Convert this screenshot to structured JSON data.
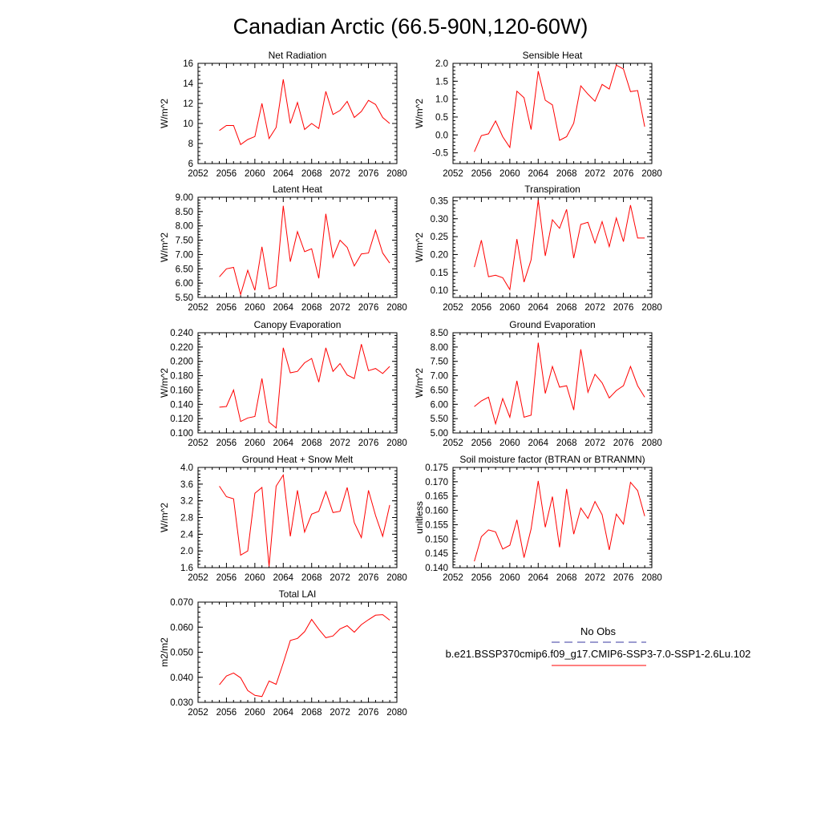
{
  "title": "Canadian Arctic (66.5-90N,120-60W)",
  "legend": {
    "obs_label": "No Obs",
    "obs_color": "#3a3aa0",
    "run_label": "b.e21.BSSP370cmip6.f09_g17.CMIP6-SSP3-7.0-SSP1-2.6Lu.102",
    "run_color": "#ff0000"
  },
  "chart_data": [
    {
      "type": "line",
      "title": "Net Radiation",
      "ylabel": "W/m^2",
      "xlim": [
        2052,
        2080
      ],
      "xticks": [
        "2052",
        "2056",
        "2060",
        "2064",
        "2068",
        "2072",
        "2076",
        "2080"
      ],
      "ylim": [
        6,
        16
      ],
      "yticks": [
        "6",
        "8",
        "10",
        "12",
        "14",
        "16"
      ],
      "x": [
        2055,
        2056,
        2057,
        2058,
        2059,
        2060,
        2061,
        2062,
        2063,
        2064,
        2065,
        2066,
        2067,
        2068,
        2069,
        2070,
        2071,
        2072,
        2073,
        2074,
        2075,
        2076,
        2077,
        2078,
        2079
      ],
      "series": [
        {
          "color": "#ff0000",
          "values": [
            9.3,
            9.8,
            9.8,
            7.9,
            8.4,
            8.7,
            12.0,
            8.5,
            9.6,
            14.4,
            10.0,
            12.1,
            9.4,
            10.0,
            9.5,
            13.2,
            10.9,
            11.3,
            12.2,
            10.6,
            11.2,
            12.3,
            11.9,
            10.6,
            10.0
          ]
        }
      ]
    },
    {
      "type": "line",
      "title": "Sensible Heat",
      "ylabel": "W/m^2",
      "xlim": [
        2052,
        2080
      ],
      "xticks": [
        "2052",
        "2056",
        "2060",
        "2064",
        "2068",
        "2072",
        "2076",
        "2080"
      ],
      "ylim": [
        -0.8,
        2.0
      ],
      "yticks": [
        "-0.5",
        "0.0",
        "0.5",
        "1.0",
        "1.5",
        "2.0"
      ],
      "yticks_values": [
        -0.5,
        0.0,
        0.5,
        1.0,
        1.5,
        2.0
      ],
      "x": [
        2055,
        2056,
        2057,
        2058,
        2059,
        2060,
        2061,
        2062,
        2063,
        2064,
        2065,
        2066,
        2067,
        2068,
        2069,
        2070,
        2071,
        2072,
        2073,
        2074,
        2075,
        2076,
        2077,
        2078,
        2079
      ],
      "series": [
        {
          "color": "#ff0000",
          "values": [
            -0.47,
            -0.02,
            0.03,
            0.39,
            -0.05,
            -0.35,
            1.22,
            1.04,
            0.15,
            1.78,
            0.97,
            0.84,
            -0.15,
            -0.05,
            0.33,
            1.37,
            1.14,
            0.94,
            1.41,
            1.28,
            1.95,
            1.84,
            1.21,
            1.24,
            0.23
          ]
        }
      ]
    },
    {
      "type": "line",
      "title": "Latent Heat",
      "ylabel": "W/m^2",
      "xlim": [
        2052,
        2080
      ],
      "xticks": [
        "2052",
        "2056",
        "2060",
        "2064",
        "2068",
        "2072",
        "2076",
        "2080"
      ],
      "ylim": [
        5.5,
        9.0
      ],
      "yticks": [
        "5.50",
        "6.00",
        "6.50",
        "7.00",
        "7.50",
        "8.00",
        "8.50",
        "9.00"
      ],
      "x": [
        2055,
        2056,
        2057,
        2058,
        2059,
        2060,
        2061,
        2062,
        2063,
        2064,
        2065,
        2066,
        2067,
        2068,
        2069,
        2070,
        2071,
        2072,
        2073,
        2074,
        2075,
        2076,
        2077,
        2078,
        2079
      ],
      "series": [
        {
          "color": "#ff0000",
          "values": [
            6.22,
            6.5,
            6.55,
            5.6,
            6.45,
            5.75,
            7.27,
            5.8,
            5.9,
            8.7,
            6.75,
            7.8,
            7.1,
            7.2,
            6.17,
            8.42,
            6.9,
            7.5,
            7.25,
            6.6,
            7.02,
            7.05,
            7.85,
            7.05,
            6.7
          ]
        }
      ]
    },
    {
      "type": "line",
      "title": "Transpiration",
      "ylabel": "W/m^2",
      "xlim": [
        2052,
        2080
      ],
      "xticks": [
        "2052",
        "2056",
        "2060",
        "2064",
        "2068",
        "2072",
        "2076",
        "2080"
      ],
      "ylim": [
        0.08,
        0.36
      ],
      "yticks": [
        "0.10",
        "0.15",
        "0.20",
        "0.25",
        "0.30",
        "0.35"
      ],
      "yticks_values": [
        0.1,
        0.15,
        0.2,
        0.25,
        0.3,
        0.35
      ],
      "x": [
        2055,
        2056,
        2057,
        2058,
        2059,
        2060,
        2061,
        2062,
        2063,
        2064,
        2065,
        2066,
        2067,
        2068,
        2069,
        2070,
        2071,
        2072,
        2073,
        2074,
        2075,
        2076,
        2077,
        2078,
        2079
      ],
      "series": [
        {
          "color": "#ff0000",
          "values": [
            0.165,
            0.24,
            0.138,
            0.142,
            0.135,
            0.102,
            0.243,
            0.123,
            0.185,
            0.352,
            0.196,
            0.297,
            0.273,
            0.326,
            0.19,
            0.284,
            0.29,
            0.232,
            0.292,
            0.222,
            0.302,
            0.236,
            0.338,
            0.246,
            0.246
          ]
        }
      ]
    },
    {
      "type": "line",
      "title": "Canopy Evaporation",
      "ylabel": "W/m^2",
      "xlim": [
        2052,
        2080
      ],
      "xticks": [
        "2052",
        "2056",
        "2060",
        "2064",
        "2068",
        "2072",
        "2076",
        "2080"
      ],
      "ylim": [
        0.1,
        0.24
      ],
      "yticks": [
        "0.100",
        "0.120",
        "0.140",
        "0.160",
        "0.180",
        "0.200",
        "0.220",
        "0.240"
      ],
      "x": [
        2055,
        2056,
        2057,
        2058,
        2059,
        2060,
        2061,
        2062,
        2063,
        2064,
        2065,
        2066,
        2067,
        2068,
        2069,
        2070,
        2071,
        2072,
        2073,
        2074,
        2075,
        2076,
        2077,
        2078,
        2079
      ],
      "series": [
        {
          "color": "#ff0000",
          "values": [
            0.136,
            0.137,
            0.16,
            0.116,
            0.121,
            0.123,
            0.176,
            0.115,
            0.107,
            0.219,
            0.184,
            0.186,
            0.198,
            0.204,
            0.171,
            0.219,
            0.186,
            0.197,
            0.181,
            0.176,
            0.224,
            0.187,
            0.19,
            0.183,
            0.193
          ]
        }
      ]
    },
    {
      "type": "line",
      "title": "Ground Evaporation",
      "ylabel": "W/m^2",
      "xlim": [
        2052,
        2080
      ],
      "xticks": [
        "2052",
        "2056",
        "2060",
        "2064",
        "2068",
        "2072",
        "2076",
        "2080"
      ],
      "ylim": [
        5.0,
        8.5
      ],
      "yticks": [
        "5.00",
        "5.50",
        "6.00",
        "6.50",
        "7.00",
        "7.50",
        "8.00",
        "8.50"
      ],
      "x": [
        2055,
        2056,
        2057,
        2058,
        2059,
        2060,
        2061,
        2062,
        2063,
        2064,
        2065,
        2066,
        2067,
        2068,
        2069,
        2070,
        2071,
        2072,
        2073,
        2074,
        2075,
        2076,
        2077,
        2078,
        2079
      ],
      "series": [
        {
          "color": "#ff0000",
          "values": [
            5.92,
            6.12,
            6.25,
            5.32,
            6.2,
            5.55,
            6.82,
            5.55,
            5.62,
            8.15,
            6.38,
            7.32,
            6.6,
            6.65,
            5.8,
            7.92,
            6.42,
            7.05,
            6.75,
            6.22,
            6.48,
            6.65,
            7.32,
            6.65,
            6.25
          ]
        }
      ]
    },
    {
      "type": "line",
      "title": "Ground Heat + Snow Melt",
      "ylabel": "W/m^2",
      "xlim": [
        2052,
        2080
      ],
      "xticks": [
        "2052",
        "2056",
        "2060",
        "2064",
        "2068",
        "2072",
        "2076",
        "2080"
      ],
      "ylim": [
        1.6,
        4.0
      ],
      "yticks": [
        "1.6",
        "2.0",
        "2.4",
        "2.8",
        "3.2",
        "3.6",
        "4.0"
      ],
      "x": [
        2055,
        2056,
        2057,
        2058,
        2059,
        2060,
        2061,
        2062,
        2063,
        2064,
        2065,
        2066,
        2067,
        2068,
        2069,
        2070,
        2071,
        2072,
        2073,
        2074,
        2075,
        2076,
        2077,
        2078,
        2079
      ],
      "series": [
        {
          "color": "#ff0000",
          "values": [
            3.55,
            3.3,
            3.25,
            1.9,
            2.0,
            3.38,
            3.52,
            1.63,
            3.55,
            3.82,
            2.35,
            3.45,
            2.45,
            2.88,
            2.95,
            3.42,
            2.92,
            2.95,
            3.52,
            2.68,
            2.32,
            3.45,
            2.85,
            2.35,
            3.1
          ]
        }
      ]
    },
    {
      "type": "line",
      "title": "Soil moisture factor (BTRAN or BTRANMN)",
      "ylabel": "unitless",
      "xlim": [
        2052,
        2080
      ],
      "xticks": [
        "2052",
        "2056",
        "2060",
        "2064",
        "2068",
        "2072",
        "2076",
        "2080"
      ],
      "ylim": [
        0.14,
        0.175
      ],
      "yticks": [
        "0.140",
        "0.145",
        "0.150",
        "0.155",
        "0.160",
        "0.165",
        "0.170",
        "0.175"
      ],
      "x": [
        2055,
        2056,
        2057,
        2058,
        2059,
        2060,
        2061,
        2062,
        2063,
        2064,
        2065,
        2066,
        2067,
        2068,
        2069,
        2070,
        2071,
        2072,
        2073,
        2074,
        2075,
        2076,
        2077,
        2078,
        2079
      ],
      "series": [
        {
          "color": "#ff0000",
          "values": [
            0.1422,
            0.1508,
            0.1532,
            0.1525,
            0.1465,
            0.1478,
            0.1567,
            0.1435,
            0.1535,
            0.1703,
            0.1541,
            0.1648,
            0.1471,
            0.1675,
            0.1517,
            0.1608,
            0.1572,
            0.1631,
            0.1585,
            0.1462,
            0.1587,
            0.1552,
            0.1698,
            0.1669,
            0.158
          ]
        }
      ]
    },
    {
      "type": "line",
      "title": "Total LAI",
      "ylabel": "m2/m2",
      "xlim": [
        2052,
        2080
      ],
      "xticks": [
        "2052",
        "2056",
        "2060",
        "2064",
        "2068",
        "2072",
        "2076",
        "2080"
      ],
      "ylim": [
        0.03,
        0.07
      ],
      "yticks": [
        "0.030",
        "0.040",
        "0.050",
        "0.060",
        "0.070"
      ],
      "x": [
        2055,
        2056,
        2057,
        2058,
        2059,
        2060,
        2061,
        2062,
        2063,
        2064,
        2065,
        2066,
        2067,
        2068,
        2069,
        2070,
        2071,
        2072,
        2073,
        2074,
        2075,
        2076,
        2077,
        2078,
        2079
      ],
      "series": [
        {
          "color": "#ff0000",
          "values": [
            0.037,
            0.0405,
            0.0417,
            0.0398,
            0.0347,
            0.0328,
            0.0323,
            0.0385,
            0.0372,
            0.0457,
            0.0547,
            0.0555,
            0.0582,
            0.0631,
            0.0592,
            0.0558,
            0.0565,
            0.0593,
            0.0606,
            0.058,
            0.061,
            0.063,
            0.0648,
            0.065,
            0.0628
          ]
        }
      ]
    }
  ]
}
